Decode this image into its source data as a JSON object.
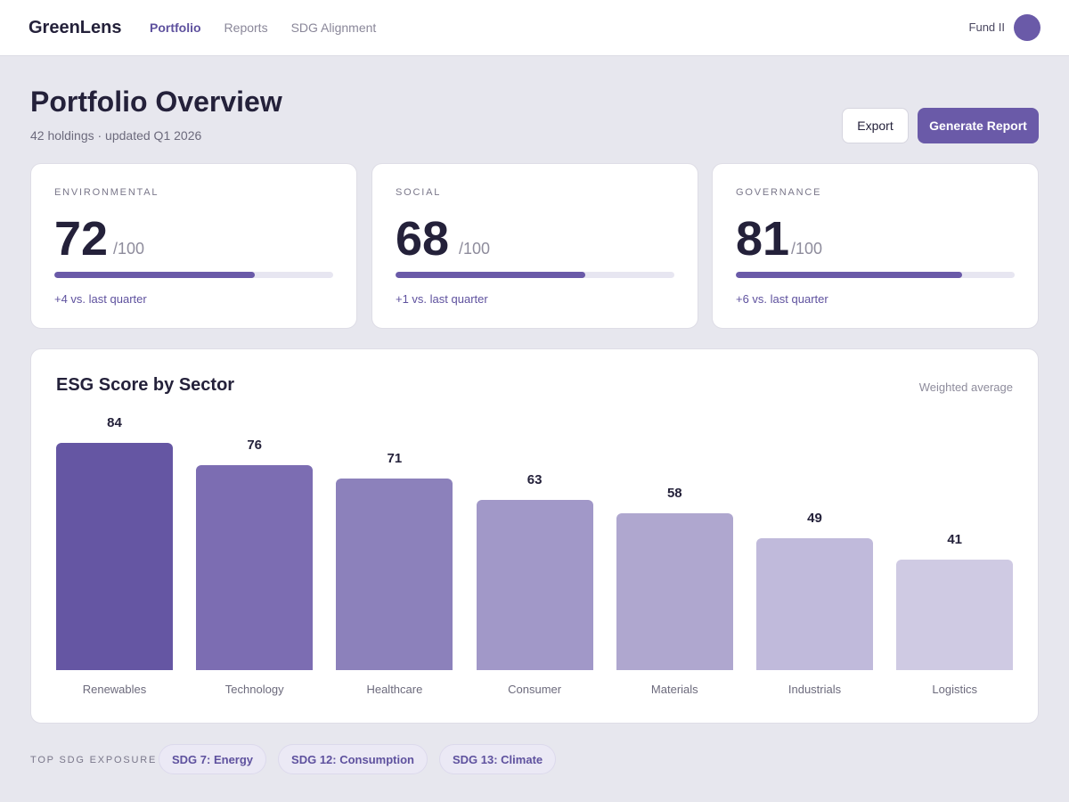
{
  "header": {
    "brand": "GreenLens",
    "nav": [
      "Portfolio",
      "Reports",
      "SDG Alignment"
    ],
    "fund": "Fund II"
  },
  "page": {
    "title": "Portfolio Overview",
    "subtitle": "42 holdings · updated Q1 2026",
    "export_label": "Export",
    "report_label": "Generate Report"
  },
  "cards": [
    {
      "label": "ENVIRONMENTAL",
      "score": "72",
      "max": "/100",
      "progress": 0.72,
      "delta": "+4 vs. last quarter"
    },
    {
      "label": "SOCIAL",
      "score": "68",
      "max": "/100",
      "progress": 0.68,
      "delta": "+1 vs. last quarter"
    },
    {
      "label": "GOVERNANCE",
      "score": "81",
      "max": "/100",
      "progress": 0.81,
      "delta": "+6 vs. last quarter"
    }
  ],
  "chart_data": {
    "type": "bar",
    "title": "ESG Score by Sector",
    "note": "Weighted average",
    "categories": [
      "Renewables",
      "Technology",
      "Healthcare",
      "Consumer",
      "Materials",
      "Industrials",
      "Logistics"
    ],
    "values": [
      84,
      76,
      71,
      63,
      58,
      49,
      41
    ],
    "colors": [
      "#6556a3",
      "#7c6db2",
      "#8c81bb",
      "#a198c8",
      "#afa7cf",
      "#c0badb",
      "#cfcae3"
    ],
    "ylim": [
      0,
      100
    ],
    "grid": false
  },
  "sdg": {
    "label": "TOP SDG EXPOSURE",
    "chips": [
      "SDG 7: Energy",
      "SDG 12: Consumption",
      "SDG 13: Climate"
    ]
  }
}
